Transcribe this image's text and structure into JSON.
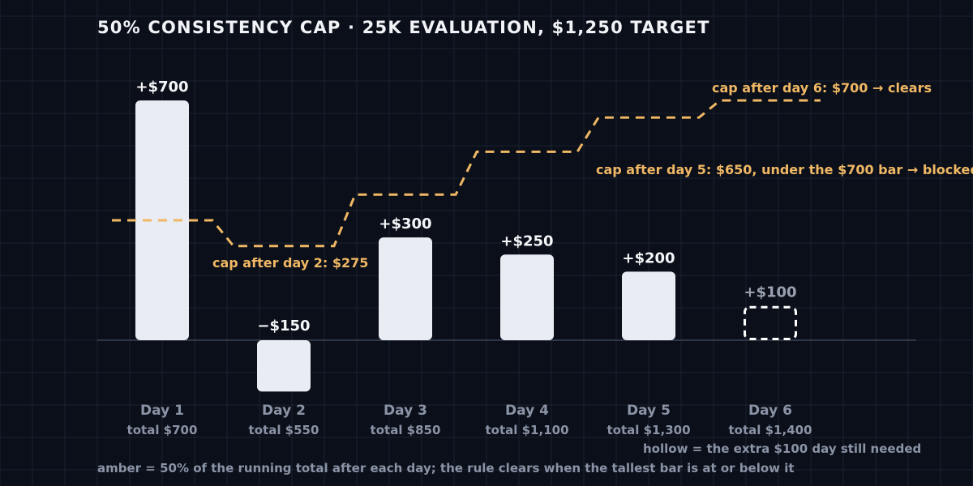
{
  "title": "50% CONSISTENCY CAP · 25K EVALUATION, $1,250 TARGET",
  "notes": {
    "hollow": "hollow = the extra $100 day still needed",
    "amber": "amber = 50% of the running total after each day; the rule clears when the tallest bar is at or below it"
  },
  "colors": {
    "background": "#0b0f19",
    "bar": "#e9ecf2",
    "cap_line": "#f0b865",
    "muted_text": "#8a94a6"
  },
  "chart_data": {
    "type": "bar",
    "categories": [
      "Day 1",
      "Day 2",
      "Day 3",
      "Day 4",
      "Day 5",
      "Day 6"
    ],
    "values": [
      700,
      -150,
      300,
      250,
      200,
      100
    ],
    "value_labels": [
      "+$700",
      "−$150",
      "+$300",
      "+$250",
      "+$200",
      "+$100"
    ],
    "running_totals": [
      "total $700",
      "total $550",
      "total $850",
      "total $1,100",
      "total $1,300",
      "total $1,400"
    ],
    "hollow": [
      false,
      false,
      false,
      false,
      false,
      true
    ],
    "cap_series": {
      "values": [
        350,
        275,
        425,
        550,
        650,
        700
      ],
      "style": "dashed-step"
    },
    "annotations": [
      {
        "day_index": 1,
        "text": "cap after day 2: $275"
      },
      {
        "day_index": 4,
        "text": "cap after day 5: $650, under the $700 bar → blocked"
      },
      {
        "day_index": 5,
        "text": "cap after day 6: $700 → clears"
      }
    ],
    "ylim": [
      -150,
      700
    ],
    "grid": true,
    "title": "50% CONSISTENCY CAP · 25K EVALUATION, $1,250 TARGET"
  }
}
